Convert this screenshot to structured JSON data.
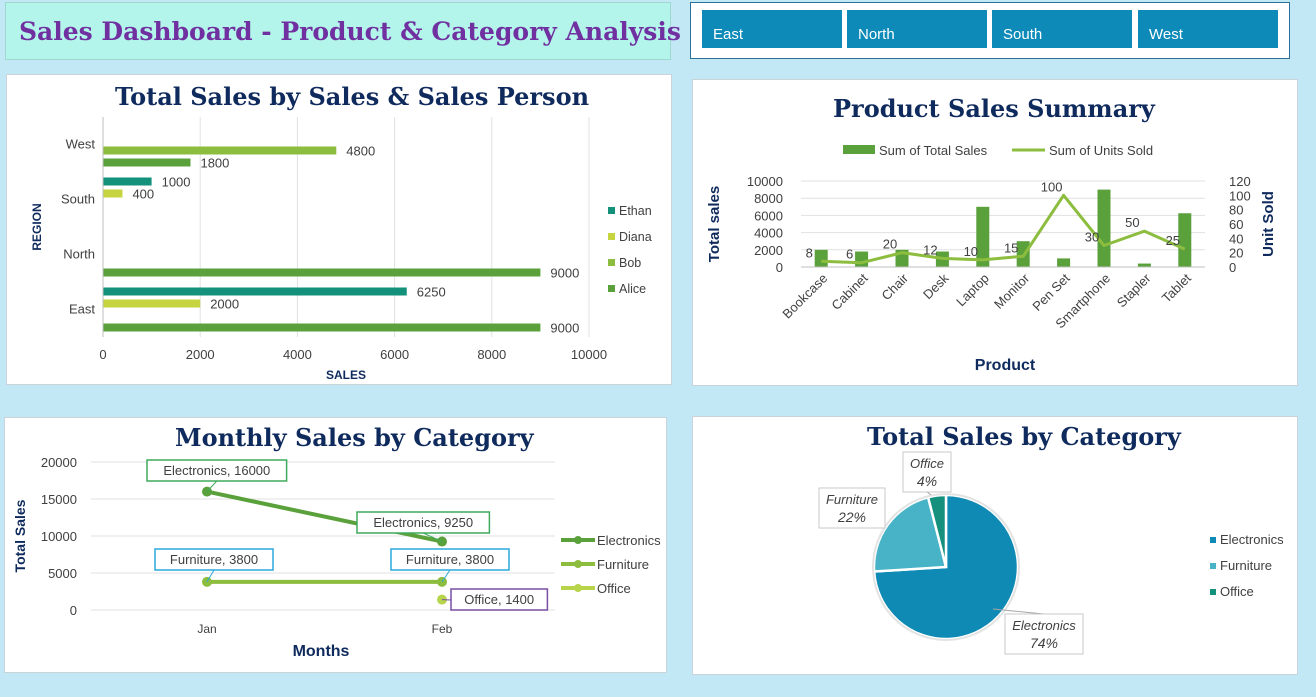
{
  "header": {
    "title": "Sales Dashboard - Product & Category Analysis"
  },
  "slicer": {
    "items": [
      "East",
      "North",
      "South",
      "West"
    ]
  },
  "colors": {
    "alice": "#5aa13c",
    "bob": "#8cbd3e",
    "diana": "#c6d53f",
    "ethan": "#13917a",
    "pie_electronics": "#0f8ab5",
    "pie_furniture": "#48b3c6",
    "pie_office": "#14907d"
  },
  "chart_data": [
    {
      "type": "bar",
      "title": "Total Sales by Sales & Sales Person",
      "xlabel": "SALES",
      "ylabel": "REGION",
      "categories": [
        "East",
        "North",
        "South",
        "West"
      ],
      "series": [
        {
          "name": "Ethan",
          "values": [
            6250,
            0,
            1000,
            0
          ]
        },
        {
          "name": "Diana",
          "values": [
            2000,
            0,
            400,
            0
          ]
        },
        {
          "name": "Bob",
          "values": [
            0,
            0,
            0,
            4800
          ]
        },
        {
          "name": "Alice",
          "values": [
            9000,
            9000,
            0,
            1800
          ]
        }
      ],
      "data_labels": [
        "9000",
        "2000",
        "6250",
        "9000",
        "400",
        "1000",
        "1800",
        "4800"
      ],
      "xlim": [
        0,
        10000
      ],
      "xticks": [
        "0",
        "2000",
        "4000",
        "6000",
        "8000",
        "10000"
      ],
      "legend": "right",
      "grid": true
    },
    {
      "type": "bar",
      "title": "Product Sales Summary",
      "xlabel": "Product",
      "ylabel": "Total sales",
      "y2label": "Unit Sold",
      "categories": [
        "Bookcase",
        "Cabinet",
        "Chair",
        "Desk",
        "Laptop",
        "Monitor",
        "Pen Set",
        "Smartphone",
        "Stapler",
        "Tablet"
      ],
      "series": [
        {
          "name": "Sum of Total Sales",
          "type": "bar",
          "values": [
            2000,
            1800,
            2000,
            1800,
            7000,
            3000,
            1000,
            9000,
            400,
            6250
          ]
        },
        {
          "name": "Sum of Units Sold",
          "type": "line",
          "axis": "right",
          "values": [
            8,
            6,
            20,
            12,
            10,
            15,
            100,
            30,
            50,
            25
          ]
        }
      ],
      "ylim": [
        0,
        10000
      ],
      "y2lim": [
        0,
        120
      ],
      "yticks": [
        "0",
        "2000",
        "4000",
        "6000",
        "8000",
        "10000"
      ],
      "y2ticks": [
        "0",
        "20",
        "40",
        "60",
        "80",
        "100",
        "120"
      ],
      "legend": "top",
      "grid": true
    },
    {
      "type": "line",
      "title": "Monthly Sales by Category",
      "xlabel": "Months",
      "ylabel": "Total Sales",
      "categories": [
        "Jan",
        "Feb"
      ],
      "series": [
        {
          "name": "Electronics",
          "values": [
            16000,
            9250
          ],
          "labels": [
            "Electronics, 16000",
            "Electronics, 9250"
          ]
        },
        {
          "name": "Furniture",
          "values": [
            3800,
            3800
          ],
          "labels": [
            "Furniture, 3800",
            "Furniture, 3800"
          ]
        },
        {
          "name": "Office",
          "values": [
            null,
            1400
          ],
          "labels": [
            "",
            "Office, 1400"
          ]
        }
      ],
      "ylim": [
        0,
        20000
      ],
      "yticks": [
        "0",
        "5000",
        "10000",
        "15000",
        "20000"
      ],
      "legend": "right",
      "grid": true
    },
    {
      "type": "pie",
      "title": "Total Sales by Category",
      "categories": [
        "Electronics",
        "Furniture",
        "Office"
      ],
      "values": [
        74,
        22,
        4
      ],
      "labels": [
        {
          "name": "Electronics",
          "pct": "74%"
        },
        {
          "name": "Furniture",
          "pct": "22%"
        },
        {
          "name": "Office",
          "pct": "4%"
        }
      ],
      "legend": "right"
    }
  ]
}
